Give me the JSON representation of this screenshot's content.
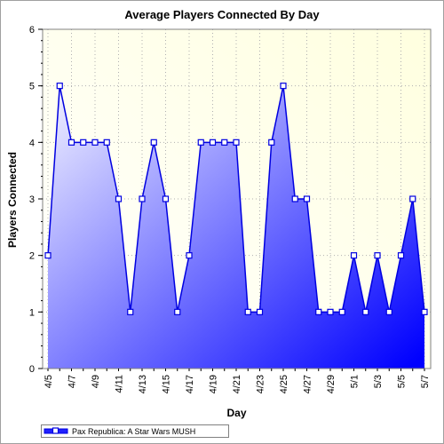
{
  "chart_data": {
    "type": "area",
    "title": "Average Players Connected By Day",
    "xlabel": "Day",
    "ylabel": "Players Connected",
    "ylim": [
      0,
      6
    ],
    "yticks": [
      0,
      1,
      2,
      3,
      4,
      5,
      6
    ],
    "x": [
      "4/5",
      "4/6",
      "4/7",
      "4/8",
      "4/9",
      "4/10",
      "4/11",
      "4/12",
      "4/13",
      "4/14",
      "4/15",
      "4/16",
      "4/17",
      "4/18",
      "4/19",
      "4/20",
      "4/21",
      "4/22",
      "4/23",
      "4/24",
      "4/25",
      "4/26",
      "4/27",
      "4/28",
      "4/29",
      "4/30",
      "5/1",
      "5/2",
      "5/3",
      "5/4",
      "5/5",
      "5/6",
      "5/7"
    ],
    "x_tick_labels": [
      "4/5",
      "4/7",
      "4/9",
      "4/11",
      "4/13",
      "4/15",
      "4/17",
      "4/19",
      "4/21",
      "4/23",
      "4/25",
      "4/27",
      "4/29",
      "5/1",
      "5/3",
      "5/5",
      "5/7"
    ],
    "series": [
      {
        "name": "Pax Republica: A Star Wars MUSH",
        "values": [
          2,
          5,
          4,
          4,
          4,
          4,
          3,
          1,
          3,
          4,
          3,
          1,
          2,
          4,
          4,
          4,
          4,
          1,
          1,
          4,
          5,
          3,
          3,
          1,
          1,
          1,
          2,
          1,
          2,
          1,
          2,
          3,
          1
        ]
      }
    ],
    "grid": true,
    "legend": "bottom-left",
    "colors": {
      "line": "#0000e0",
      "marker_fill": "#ffffff",
      "area_light": "#e8e8ff",
      "area_dark": "#0000ff",
      "plot_bg_light": "#ffffdf",
      "plot_bg_white": "#ffffff",
      "grid": "#b0b0b0"
    }
  }
}
